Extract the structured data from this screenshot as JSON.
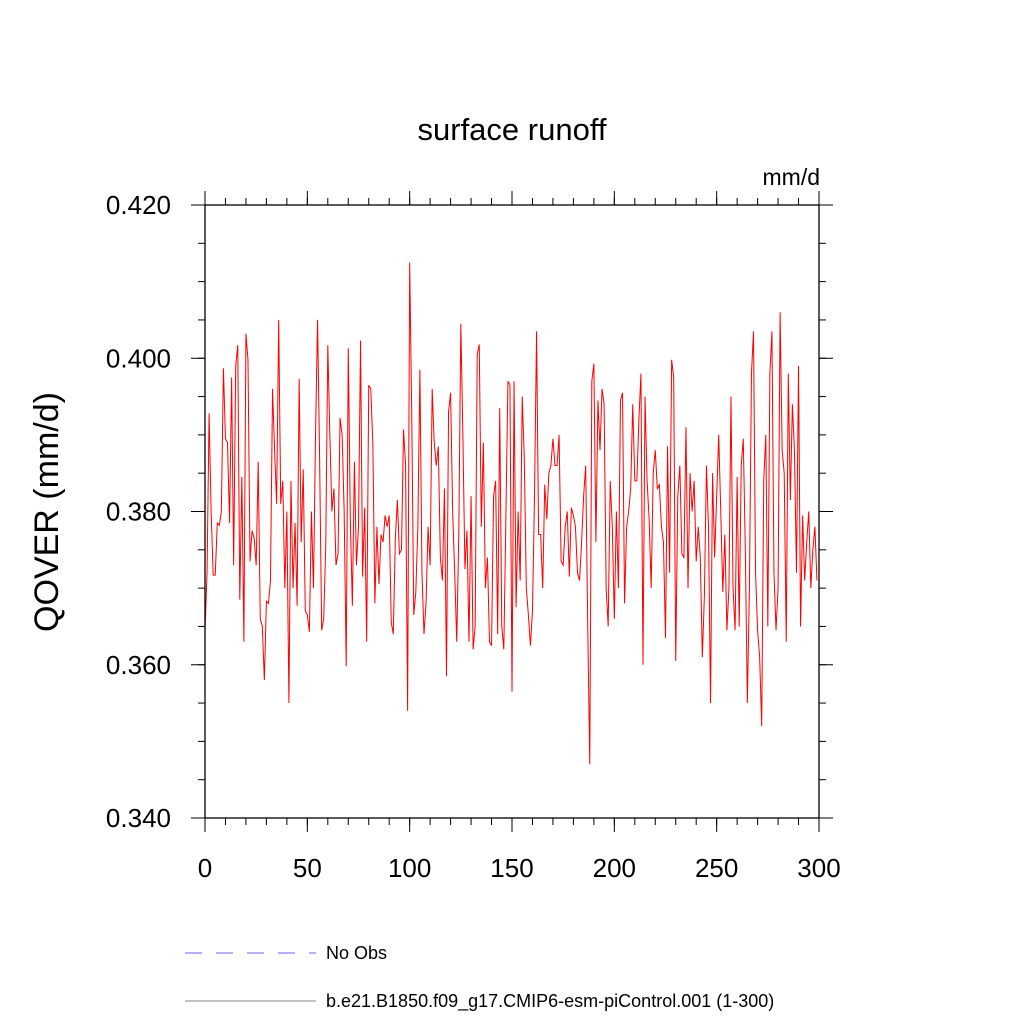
{
  "chart_data": {
    "type": "line",
    "title": "surface runoff",
    "units_label": "mm/d",
    "xlabel": "",
    "ylabel": "QOVER  (mm/d)",
    "xlim": [
      0,
      300
    ],
    "ylim": [
      0.34,
      0.42
    ],
    "x_ticks": [
      0,
      50,
      100,
      150,
      200,
      250,
      300
    ],
    "x_tick_labels": [
      "0",
      "50",
      "100",
      "150",
      "200",
      "250",
      "300"
    ],
    "y_ticks": [
      0.34,
      0.36,
      0.38,
      0.4,
      0.42
    ],
    "y_tick_labels": [
      "0.340",
      "0.360",
      "0.380",
      "0.400",
      "0.420"
    ],
    "x_minor_step": 10,
    "y_minor_step": 0.005,
    "grid": false,
    "legend_placement": "bottom",
    "legend": [
      {
        "label": "No Obs",
        "color": "#6666ff",
        "style": "dashed"
      },
      {
        "label": "b.e21.B1850.f09_g17.CMIP6-esm-piControl.001 (1-300)",
        "color": "#888888",
        "style": "solid"
      }
    ],
    "series": [
      {
        "name": "b.e21.B1850.f09_g17.CMIP6-esm-piControl.001 (1-300)",
        "color": "#ff0000",
        "x_start": 0,
        "values": [
          0.3645,
          0.372,
          0.3928,
          0.38,
          0.3717,
          0.3717,
          0.3785,
          0.3782,
          0.38,
          0.3987,
          0.3895,
          0.389,
          0.3785,
          0.3975,
          0.373,
          0.399,
          0.4017,
          0.3685,
          0.3845,
          0.363,
          0.4032,
          0.3998,
          0.3735,
          0.3775,
          0.3765,
          0.373,
          0.3865,
          0.366,
          0.365,
          0.358,
          0.3683,
          0.368,
          0.371,
          0.396,
          0.388,
          0.381,
          0.405,
          0.381,
          0.384,
          0.37,
          0.38,
          0.355,
          0.384,
          0.37,
          0.3785,
          0.3677,
          0.3973,
          0.376,
          0.3855,
          0.367,
          0.3665,
          0.3643,
          0.38,
          0.37,
          0.39,
          0.405,
          0.387,
          0.3645,
          0.366,
          0.3755,
          0.4017,
          0.39,
          0.38,
          0.383,
          0.373,
          0.3745,
          0.3922,
          0.39,
          0.38,
          0.3598,
          0.4013,
          0.379,
          0.3677,
          0.3865,
          0.373,
          0.378,
          0.4023,
          0.3715,
          0.3805,
          0.363,
          0.3965,
          0.396,
          0.389,
          0.368,
          0.378,
          0.3705,
          0.377,
          0.376,
          0.3795,
          0.378,
          0.3795,
          0.3655,
          0.364,
          0.3765,
          0.3815,
          0.3745,
          0.375,
          0.3907,
          0.386,
          0.354,
          0.4125,
          0.393,
          0.3665,
          0.3695,
          0.378,
          0.3985,
          0.372,
          0.364,
          0.368,
          0.378,
          0.373,
          0.396,
          0.389,
          0.386,
          0.3885,
          0.374,
          0.371,
          0.383,
          0.3585,
          0.393,
          0.3955,
          0.38,
          0.372,
          0.363,
          0.377,
          0.4045,
          0.39,
          0.3725,
          0.3775,
          0.363,
          0.382,
          0.362,
          0.365,
          0.4005,
          0.4018,
          0.378,
          0.389,
          0.37,
          0.374,
          0.363,
          0.3625,
          0.382,
          0.384,
          0.364,
          0.3935,
          0.365,
          0.362,
          0.379,
          0.397,
          0.3965,
          0.3565,
          0.397,
          0.3675,
          0.38,
          0.371,
          0.395,
          0.387,
          0.37,
          0.3665,
          0.3625,
          0.367,
          0.382,
          0.4035,
          0.377,
          0.377,
          0.37,
          0.3835,
          0.379,
          0.385,
          0.386,
          0.3895,
          0.386,
          0.386,
          0.39,
          0.3735,
          0.373,
          0.378,
          0.38,
          0.3715,
          0.3805,
          0.3795,
          0.378,
          0.372,
          0.371,
          0.376,
          0.382,
          0.386,
          0.365,
          0.347,
          0.397,
          0.3993,
          0.376,
          0.3945,
          0.388,
          0.396,
          0.394,
          0.37,
          0.365,
          0.384,
          0.378,
          0.366,
          0.38,
          0.37,
          0.3945,
          0.3955,
          0.368,
          0.378,
          0.38,
          0.383,
          0.394,
          0.384,
          0.384,
          0.392,
          0.398,
          0.36,
          0.395,
          0.384,
          0.379,
          0.37,
          0.385,
          0.388,
          0.383,
          0.3835,
          0.378,
          0.376,
          0.3635,
          0.3885,
          0.372,
          0.3998,
          0.3975,
          0.3605,
          0.382,
          0.386,
          0.3745,
          0.374,
          0.391,
          0.37,
          0.385,
          0.38,
          0.384,
          0.3735,
          0.378,
          0.374,
          0.361,
          0.369,
          0.386,
          0.378,
          0.355,
          0.385,
          0.374,
          0.382,
          0.39,
          0.38,
          0.3695,
          0.377,
          0.3645,
          0.37,
          0.395,
          0.37,
          0.3645,
          0.3845,
          0.365,
          0.386,
          0.3895,
          0.375,
          0.355,
          0.37,
          0.398,
          0.4035,
          0.372,
          0.3645,
          0.361,
          0.352,
          0.384,
          0.39,
          0.365,
          0.398,
          0.4035,
          0.372,
          0.3645,
          0.37,
          0.406,
          0.388,
          0.385,
          0.363,
          0.398,
          0.3815,
          0.394,
          0.388,
          0.372,
          0.399,
          0.365,
          0.3795,
          0.371,
          0.376,
          0.38,
          0.37,
          0.375,
          0.378,
          0.371
        ]
      }
    ]
  }
}
